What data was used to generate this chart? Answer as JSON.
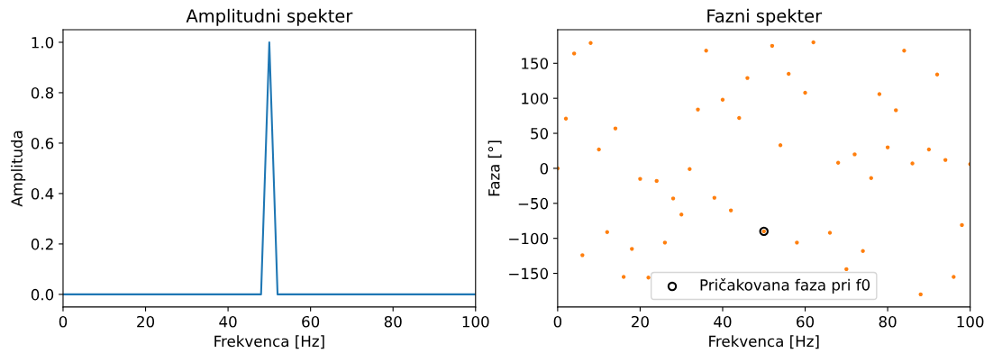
{
  "chart_data": [
    {
      "type": "line",
      "title": "Amplitudni spekter",
      "xlabel": "Frekvenca [Hz]",
      "ylabel": "Amplituda",
      "x": [
        0,
        2,
        4,
        6,
        8,
        10,
        12,
        14,
        16,
        18,
        20,
        22,
        24,
        26,
        28,
        30,
        32,
        34,
        36,
        38,
        40,
        42,
        44,
        46,
        48,
        50,
        52,
        54,
        56,
        58,
        60,
        62,
        64,
        66,
        68,
        70,
        72,
        74,
        76,
        78,
        80,
        82,
        84,
        86,
        88,
        90,
        92,
        94,
        96,
        98,
        100
      ],
      "series": [
        {
          "color": "#1f77b4",
          "values": [
            0,
            0,
            0,
            0,
            0,
            0,
            0,
            0,
            0,
            0,
            0,
            0,
            0,
            0,
            0,
            0,
            0,
            0,
            0,
            0,
            0,
            0,
            0,
            0,
            0,
            1,
            0,
            0,
            0,
            0,
            0,
            0,
            0,
            0,
            0,
            0,
            0,
            0,
            0,
            0,
            0,
            0,
            0,
            0,
            0,
            0,
            0,
            0,
            0,
            0,
            0
          ]
        }
      ],
      "xlim": [
        0,
        100
      ],
      "xticks": [
        0,
        20,
        40,
        60,
        80,
        100
      ],
      "ylim": [
        -0.05,
        1.05
      ],
      "yticks": [
        {
          "value": 0,
          "label": "0.0"
        },
        0.2,
        0.4,
        0.6,
        0.8,
        {
          "value": 1,
          "label": "1.0"
        }
      ]
    },
    {
      "type": "scatter",
      "title": "Fazni spekter",
      "xlabel": "Frekvenca [Hz]",
      "ylabel": "Faza [°]",
      "x": [
        0,
        2,
        4,
        6,
        8,
        10,
        12,
        14,
        16,
        18,
        20,
        22,
        24,
        26,
        28,
        30,
        32,
        34,
        36,
        38,
        40,
        42,
        44,
        46,
        48,
        50,
        52,
        54,
        56,
        58,
        60,
        62,
        64,
        66,
        68,
        70,
        72,
        74,
        76,
        78,
        80,
        82,
        84,
        86,
        88,
        90,
        92,
        94,
        96,
        98,
        100
      ],
      "series": [
        {
          "color": "#ff7f0e",
          "values": [
            0,
            71,
            164,
            -124,
            179,
            27,
            -91,
            57,
            -155,
            -115,
            -15,
            -156,
            -18,
            -106,
            -43,
            -66,
            -1,
            84,
            168,
            -42,
            98,
            -60,
            72,
            129,
            null,
            -90,
            175,
            33,
            135,
            -106,
            108,
            180,
            null,
            -92,
            8,
            -144,
            20,
            -118,
            -14,
            106,
            30,
            83,
            168,
            7,
            -180,
            27,
            134,
            12,
            -155,
            -81,
            6
          ]
        },
        {
          "name": "Pričakovana faza pri f0",
          "color": "#000000",
          "x": [
            50
          ],
          "values": [
            -90
          ]
        }
      ],
      "xlim": [
        0,
        100
      ],
      "xticks": [
        0,
        20,
        40,
        60,
        80,
        100
      ],
      "ylim": [
        -198,
        198
      ],
      "yticks": [
        {
          "value": -150,
          "label": "−150"
        },
        {
          "value": -100,
          "label": "−100"
        },
        {
          "value": -50,
          "label": "−50"
        },
        0,
        50,
        100,
        150
      ],
      "marker": "circle",
      "legend": "bottom"
    }
  ]
}
